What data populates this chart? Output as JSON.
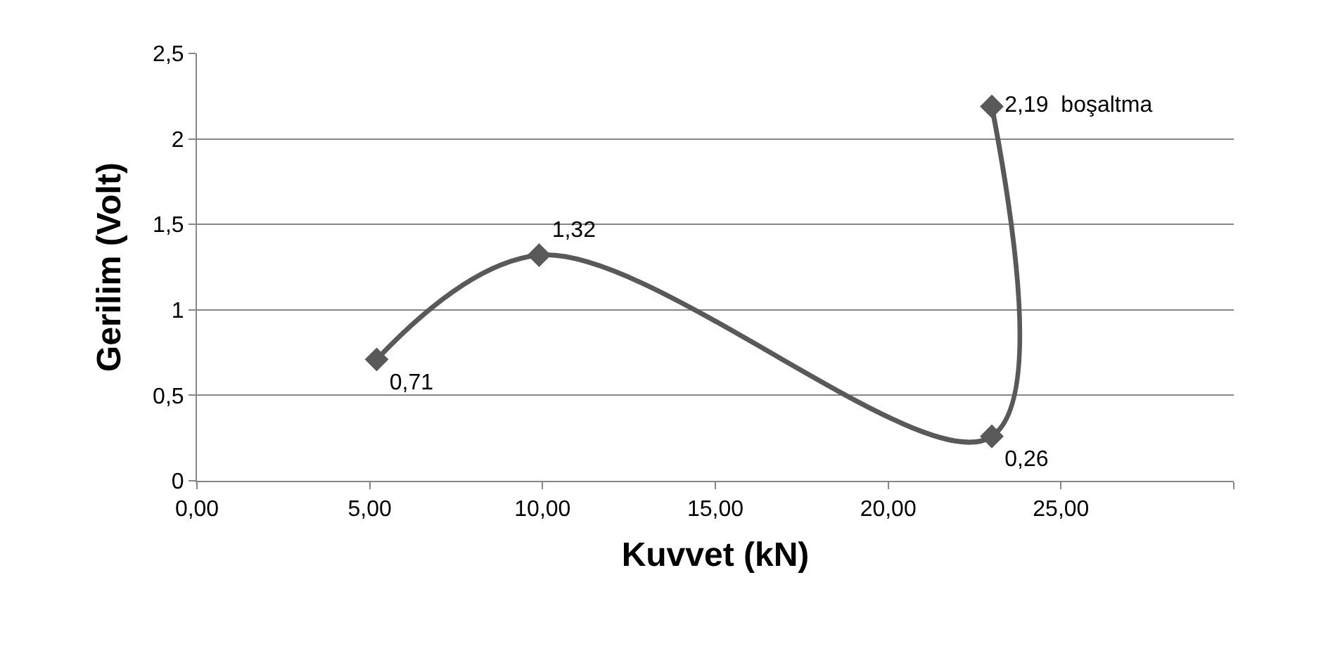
{
  "chart_data": {
    "type": "line",
    "xlabel": "Kuvvet (kN)",
    "ylabel": "Gerilim (Volt)",
    "x": [
      5.2,
      9.9,
      23.0,
      23.0
    ],
    "series": [
      {
        "color": "#595959",
        "values": [
          0.71,
          1.32,
          0.26,
          2.19
        ],
        "value_labels": [
          "0,71",
          "1,32",
          "0,26",
          "2,19  boşaltma"
        ]
      }
    ],
    "xlim": [
      0,
      30
    ],
    "xticks": [
      {
        "value": 0,
        "label": "0,00"
      },
      {
        "value": 5,
        "label": "5,00"
      },
      {
        "value": 10,
        "label": "10,00"
      },
      {
        "value": 15,
        "label": "15,00"
      },
      {
        "value": 20,
        "label": "20,00"
      },
      {
        "value": 25,
        "label": "25,00"
      },
      {
        "value": 30,
        "label": null
      }
    ],
    "ylim": [
      0,
      2.5
    ],
    "yticks": [
      0,
      {
        "value": 0.5,
        "label": "0,5"
      },
      1,
      {
        "value": 1.5,
        "label": "1,5"
      },
      2,
      {
        "value": 2.5,
        "label": "2,5"
      }
    ],
    "grid": "y",
    "marker": "diamond",
    "line_style": "solid",
    "legend": false
  }
}
